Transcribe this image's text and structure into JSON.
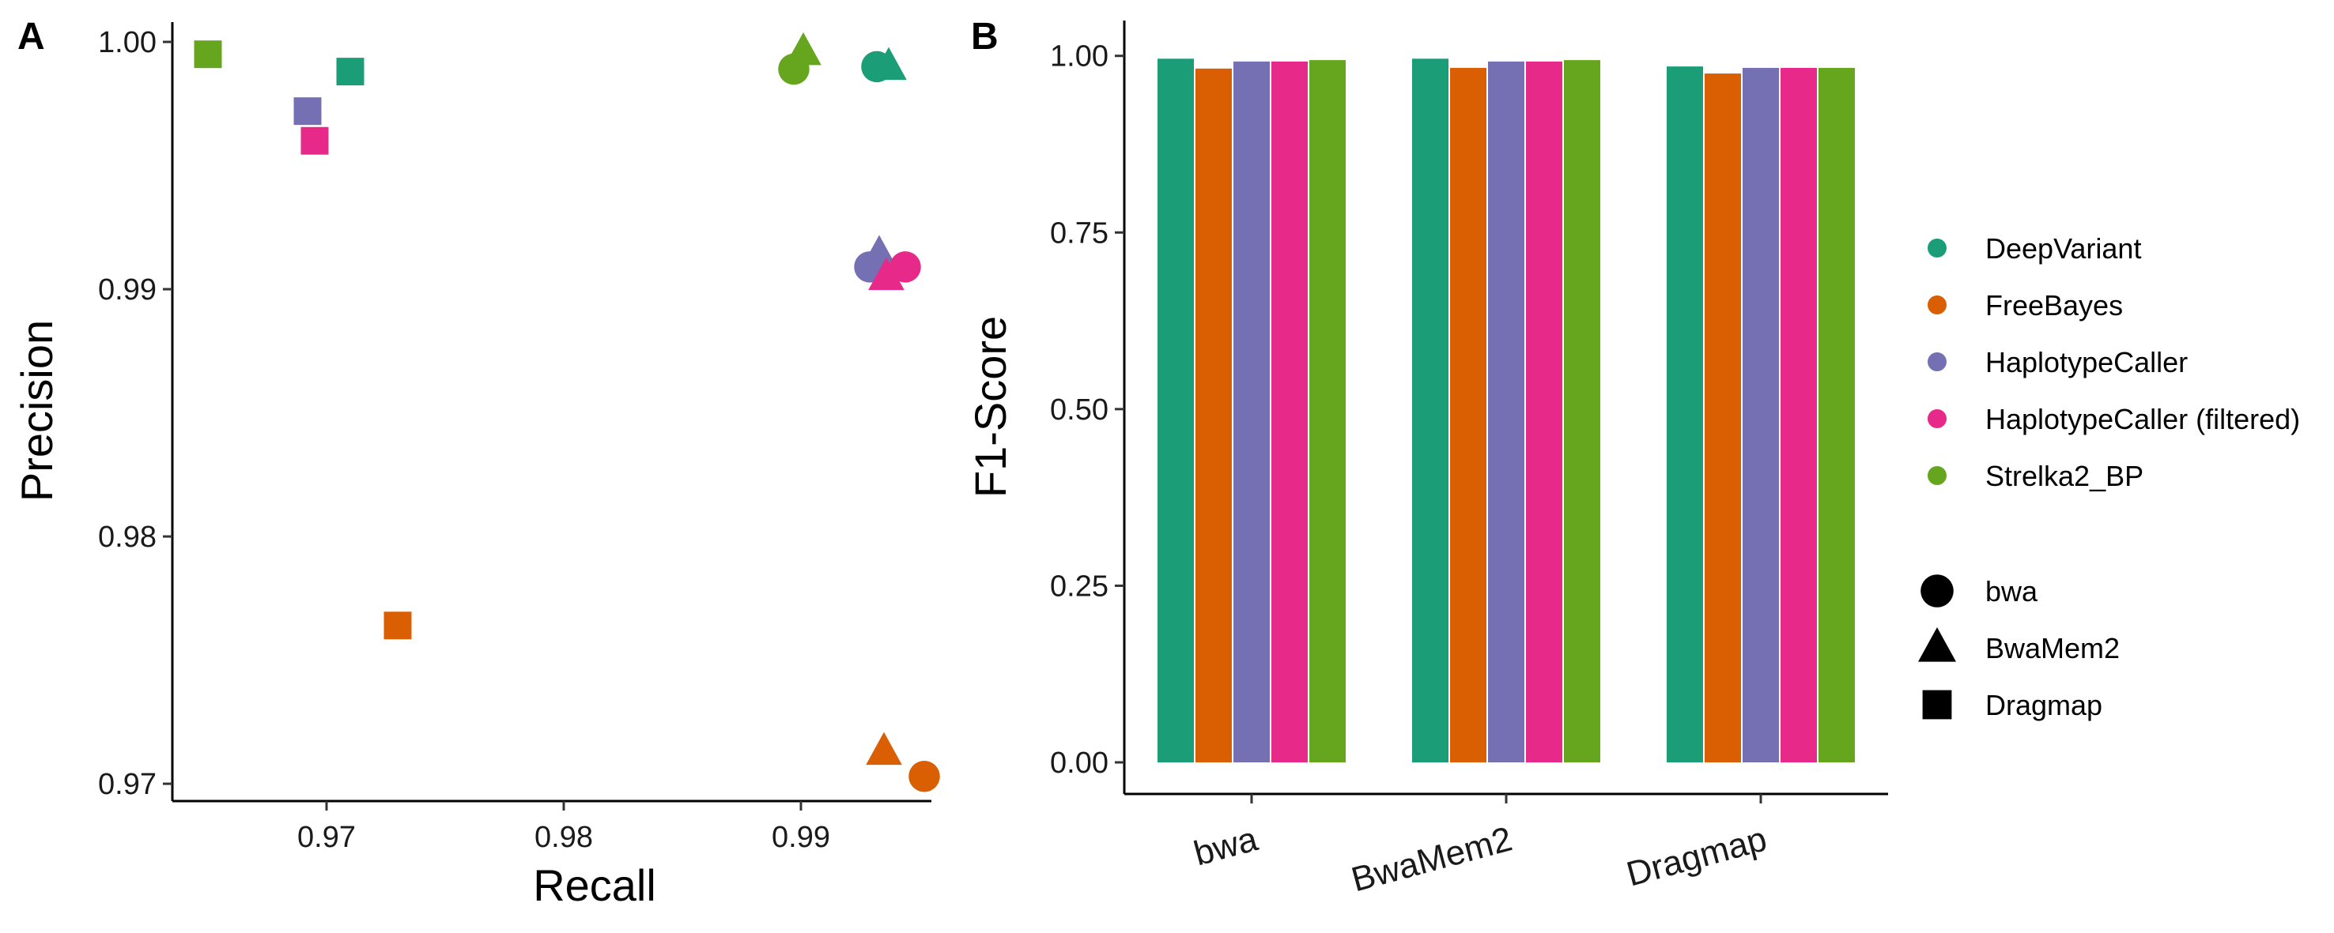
{
  "figure": {
    "panel_a_letter": "A",
    "panel_b_letter": "B"
  },
  "legend": {
    "callers": [
      {
        "name": "DeepVariant",
        "color": "#1b9e77"
      },
      {
        "name": "FreeBayes",
        "color": "#d95f02"
      },
      {
        "name": "HaplotypeCaller",
        "color": "#7570b3"
      },
      {
        "name": "HaplotypeCaller (filtered)",
        "color": "#e7298a"
      },
      {
        "name": "Strelka2_BP",
        "color": "#66a61e"
      }
    ],
    "aligners": [
      {
        "name": "bwa",
        "shape": "circle"
      },
      {
        "name": "BwaMem2",
        "shape": "triangle"
      },
      {
        "name": "Dragmap",
        "shape": "square"
      }
    ]
  },
  "chart_data": [
    {
      "type": "scatter",
      "panel": "A",
      "xlabel": "Recall",
      "ylabel": "Precision",
      "xlim": [
        0.9635,
        0.9955
      ],
      "ylim": [
        0.9693,
        1.0008
      ],
      "xticks": [
        0.97,
        0.98,
        0.99
      ],
      "yticks": [
        0.97,
        0.98,
        0.99,
        1.0
      ],
      "xtick_labels": [
        "0.97",
        "0.98",
        "0.99"
      ],
      "ytick_labels": [
        "0.97",
        "0.98",
        "0.99",
        "1.00"
      ],
      "points": [
        {
          "caller": "DeepVariant",
          "aligner": "bwa",
          "x": 0.9932,
          "y": 0.999
        },
        {
          "caller": "DeepVariant",
          "aligner": "BwaMem2",
          "x": 0.9937,
          "y": 0.999
        },
        {
          "caller": "DeepVariant",
          "aligner": "Dragmap",
          "x": 0.971,
          "y": 0.9988
        },
        {
          "caller": "FreeBayes",
          "aligner": "bwa",
          "x": 0.9952,
          "y": 0.9703
        },
        {
          "caller": "FreeBayes",
          "aligner": "BwaMem2",
          "x": 0.9935,
          "y": 0.9713
        },
        {
          "caller": "FreeBayes",
          "aligner": "Dragmap",
          "x": 0.973,
          "y": 0.9764
        },
        {
          "caller": "HaplotypeCaller",
          "aligner": "bwa",
          "x": 0.9929,
          "y": 0.9909
        },
        {
          "caller": "HaplotypeCaller",
          "aligner": "BwaMem2",
          "x": 0.9933,
          "y": 0.9914
        },
        {
          "caller": "HaplotypeCaller",
          "aligner": "Dragmap",
          "x": 0.9692,
          "y": 0.9972
        },
        {
          "caller": "HaplotypeCaller (filtered)",
          "aligner": "bwa",
          "x": 0.9944,
          "y": 0.9909
        },
        {
          "caller": "HaplotypeCaller (filtered)",
          "aligner": "BwaMem2",
          "x": 0.9936,
          "y": 0.9905
        },
        {
          "caller": "HaplotypeCaller (filtered)",
          "aligner": "Dragmap",
          "x": 0.9695,
          "y": 0.996
        },
        {
          "caller": "Strelka2_BP",
          "aligner": "bwa",
          "x": 0.9897,
          "y": 0.9989
        },
        {
          "caller": "Strelka2_BP",
          "aligner": "BwaMem2",
          "x": 0.9901,
          "y": 0.9996
        },
        {
          "caller": "Strelka2_BP",
          "aligner": "Dragmap",
          "x": 0.965,
          "y": 0.9995
        }
      ]
    },
    {
      "type": "bar",
      "panel": "B",
      "xlabel": "",
      "ylabel": "F1-Score",
      "ylim": [
        0,
        1.05
      ],
      "yticks": [
        0,
        0.25,
        0.5,
        0.75,
        1.0
      ],
      "ytick_labels": [
        "0.00",
        "0.25",
        "0.50",
        "0.75",
        "1.00"
      ],
      "categories": [
        "bwa",
        "BwaMem2",
        "Dragmap"
      ],
      "series": [
        {
          "name": "DeepVariant",
          "values": [
            0.996,
            0.996,
            0.985
          ]
        },
        {
          "name": "FreeBayes",
          "values": [
            0.982,
            0.983,
            0.975
          ]
        },
        {
          "name": "HaplotypeCaller",
          "values": [
            0.992,
            0.992,
            0.983
          ]
        },
        {
          "name": "HaplotypeCaller (filtered)",
          "values": [
            0.992,
            0.992,
            0.983
          ]
        },
        {
          "name": "Strelka2_BP",
          "values": [
            0.994,
            0.994,
            0.983
          ]
        }
      ]
    }
  ]
}
